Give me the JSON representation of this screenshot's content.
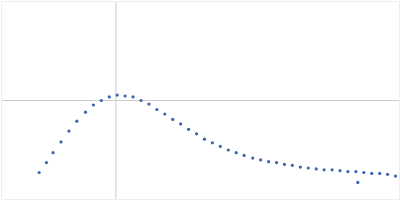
{
  "chart_data": {
    "type": "scatter",
    "x": [
      0.57,
      0.68,
      0.78,
      0.9,
      1.02,
      1.14,
      1.27,
      1.39,
      1.51,
      1.63,
      1.75,
      1.87,
      1.99,
      2.11,
      2.23,
      2.35,
      2.47,
      2.59,
      2.71,
      2.83,
      2.95,
      3.07,
      3.19,
      3.31,
      3.43,
      3.55,
      3.67,
      3.8,
      3.92,
      4.04,
      4.16,
      4.28,
      4.4,
      4.52,
      4.64,
      4.76,
      4.88,
      5.0,
      5.12,
      5.24,
      5.36,
      5.39,
      5.48,
      5.6,
      5.72,
      5.84,
      5.96
    ],
    "values": [
      0.3,
      0.41,
      0.52,
      0.64,
      0.76,
      0.87,
      0.97,
      1.05,
      1.1,
      1.14,
      1.16,
      1.15,
      1.14,
      1.1,
      1.06,
      1.0,
      0.95,
      0.89,
      0.84,
      0.78,
      0.73,
      0.67,
      0.63,
      0.59,
      0.55,
      0.52,
      0.49,
      0.46,
      0.44,
      0.42,
      0.41,
      0.39,
      0.38,
      0.36,
      0.35,
      0.34,
      0.33,
      0.33,
      0.32,
      0.31,
      0.31,
      0.19,
      0.3,
      0.29,
      0.29,
      0.28,
      0.26
    ],
    "color": "#3a66b0",
    "marker": "circle",
    "xlim": [
      0,
      6.02
    ],
    "ylim": [
      0,
      2.2
    ],
    "xticks": [
      1.73
    ],
    "yticks": [
      1.1
    ],
    "grid": true,
    "tick_labels": false
  }
}
